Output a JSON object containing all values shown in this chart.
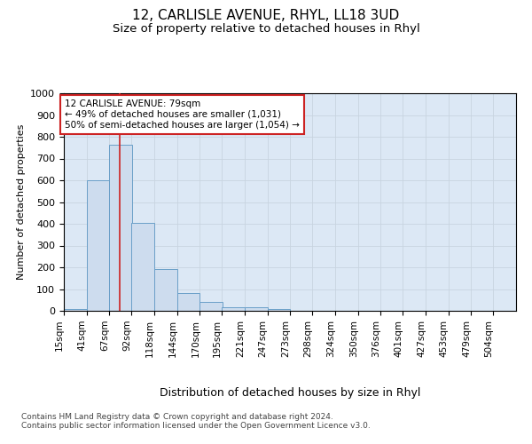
{
  "title1": "12, CARLISLE AVENUE, RHYL, LL18 3UD",
  "title2": "Size of property relative to detached houses in Rhyl",
  "xlabel": "Distribution of detached houses by size in Rhyl",
  "ylabel": "Number of detached properties",
  "bin_edges": [
    15,
    41,
    67,
    92,
    118,
    144,
    170,
    195,
    221,
    247,
    273,
    298,
    324,
    350,
    376,
    401,
    427,
    453,
    479,
    504,
    530
  ],
  "bar_heights": [
    10,
    600,
    765,
    405,
    190,
    80,
    40,
    15,
    15,
    10,
    0,
    0,
    0,
    0,
    0,
    0,
    0,
    0,
    0,
    0
  ],
  "bar_color": "#cddcee",
  "bar_edge_color": "#6a9fc8",
  "grid_color": "#c8d4e0",
  "background_color": "#dce8f5",
  "property_line_x": 79,
  "property_line_color": "#cc2222",
  "annotation_line1": "12 CARLISLE AVENUE: 79sqm",
  "annotation_line2": "← 49% of detached houses are smaller (1,031)",
  "annotation_line3": "50% of semi-detached houses are larger (1,054) →",
  "annotation_box_color": "#cc2222",
  "ylim": [
    0,
    1000
  ],
  "yticks": [
    0,
    100,
    200,
    300,
    400,
    500,
    600,
    700,
    800,
    900,
    1000
  ],
  "footer": "Contains HM Land Registry data © Crown copyright and database right 2024.\nContains public sector information licensed under the Open Government Licence v3.0.",
  "title_fontsize": 11,
  "subtitle_fontsize": 9.5,
  "xlabel_fontsize": 9,
  "ylabel_fontsize": 8,
  "tick_fontsize": 7.5,
  "annotation_fontsize": 7.5,
  "footer_fontsize": 6.5
}
